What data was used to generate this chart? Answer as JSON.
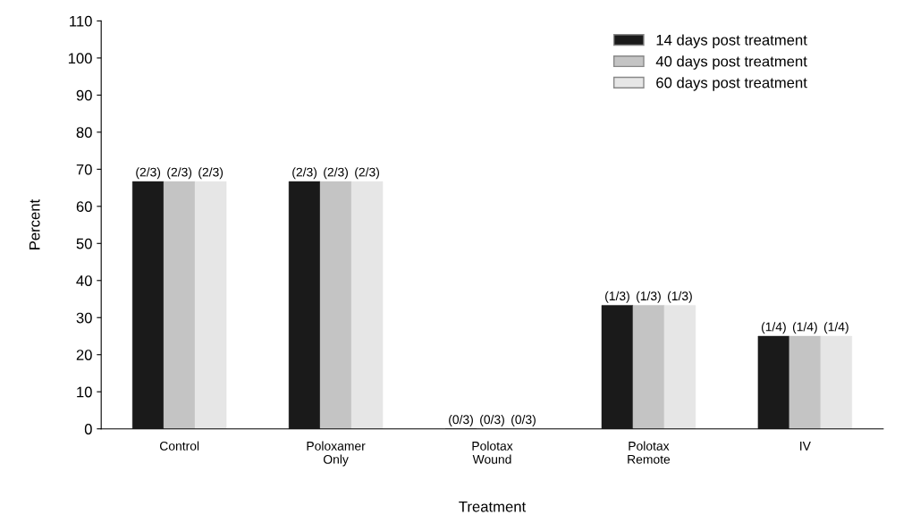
{
  "chart_data": {
    "type": "bar",
    "xlabel": "Treatment",
    "ylabel": "Percent",
    "categories": [
      "Control",
      "Poloxamer\nOnly",
      "Polotax\nWound",
      "Polotax\nRemote",
      "IV"
    ],
    "series": [
      {
        "name": "14 days post treatment",
        "color": "#1a1a1a",
        "values": [
          66.7,
          66.7,
          0,
          33.3,
          25
        ],
        "value_labels": [
          "(2/3)",
          "(2/3)",
          "(0/3)",
          "(1/3)",
          "(1/4)"
        ]
      },
      {
        "name": "40 days post treatment",
        "color": "#c4c4c4",
        "values": [
          66.7,
          66.7,
          0,
          33.3,
          25
        ],
        "value_labels": [
          "(2/3)",
          "(2/3)",
          "(0/3)",
          "(1/3)",
          "(1/4)"
        ]
      },
      {
        "name": "60 days post treatment",
        "color": "#e6e6e6",
        "values": [
          66.7,
          66.7,
          0,
          33.3,
          25
        ],
        "value_labels": [
          "(2/3)",
          "(2/3)",
          "(0/3)",
          "(1/3)",
          "(1/4)"
        ]
      }
    ],
    "ylim": [
      0,
      110
    ],
    "yticks": [
      0,
      10,
      20,
      30,
      40,
      50,
      60,
      70,
      80,
      90,
      100,
      110
    ],
    "grid": false,
    "legend": "top right"
  }
}
